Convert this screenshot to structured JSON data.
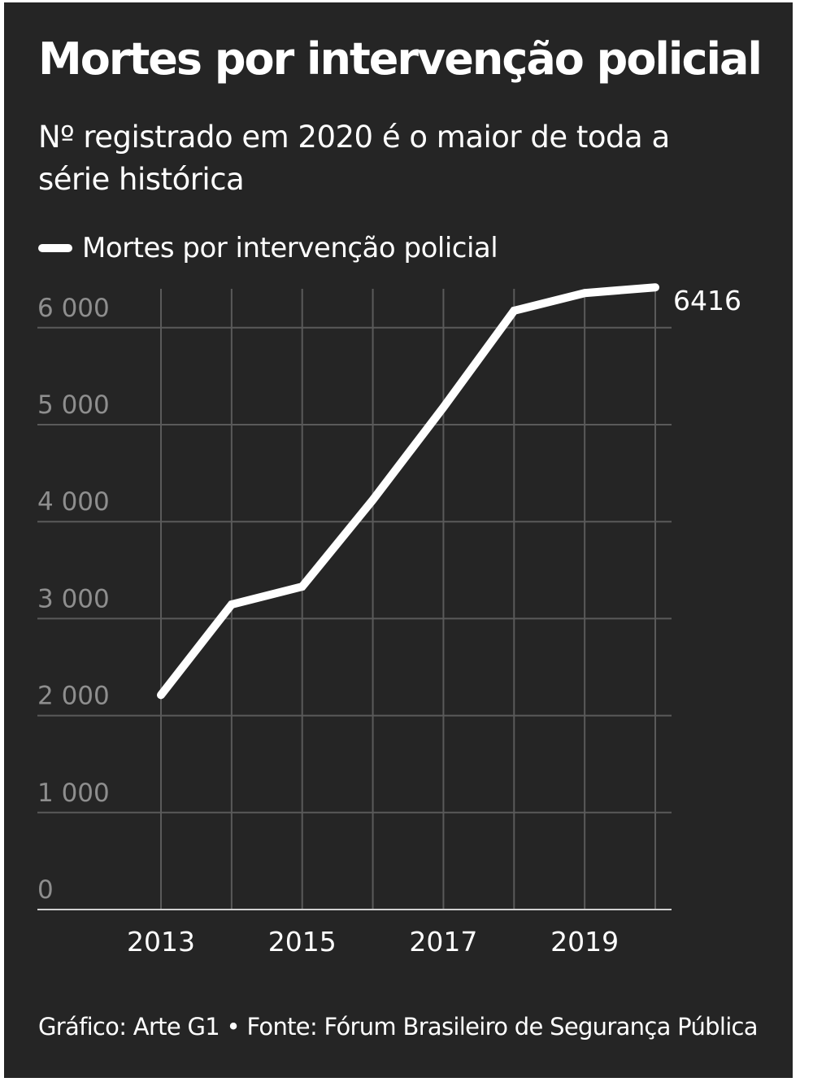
{
  "header": {
    "title": "Mortes por intervenção policial",
    "subtitle": "Nº registrado em 2020 é o maior de toda a série histórica"
  },
  "legend": {
    "label": "Mortes por intervenção policial"
  },
  "footer": {
    "source": "Gráfico: Arte G1 • Fonte: Fórum Brasileiro de Segurança Pública"
  },
  "colors": {
    "background": "#252525",
    "line": "#ffffff",
    "grid": "#5a5a5a",
    "y_tick_text": "#8e8e8e",
    "text": "#ffffff"
  },
  "chart_data": {
    "type": "line",
    "title": "Mortes por intervenção policial",
    "subtitle": "Nº registrado em 2020 é o maior de toda a série histórica",
    "x": [
      2013,
      2014,
      2015,
      2016,
      2017,
      2018,
      2019,
      2020
    ],
    "x_tick_labels": [
      "2013",
      "2015",
      "2017",
      "2019"
    ],
    "y_tick_labels": [
      "0",
      "1 000",
      "2 000",
      "3 000",
      "4 000",
      "5 000",
      "6 000"
    ],
    "series": [
      {
        "name": "Mortes por intervenção policial",
        "values": [
          2212,
          3146,
          3330,
          4224,
          5179,
          6175,
          6357,
          6416
        ]
      }
    ],
    "end_label": "6416",
    "xlim": [
      2013,
      2020
    ],
    "ylim": [
      0,
      6416
    ],
    "xlabel": "",
    "ylabel": "",
    "grid": true,
    "legend_position": "top-left"
  }
}
